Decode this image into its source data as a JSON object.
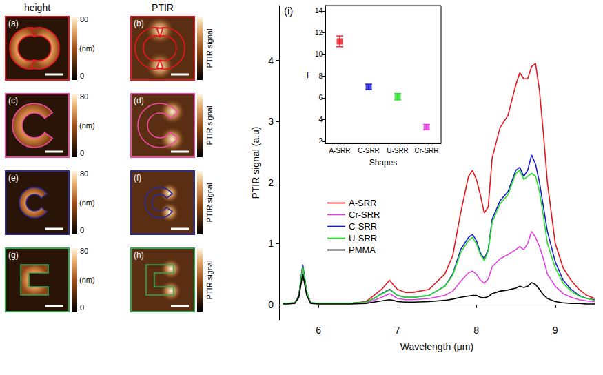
{
  "image_panels": {
    "column_titles": [
      "height",
      "PTIR"
    ],
    "height_colorbar": {
      "range": [
        0,
        80
      ],
      "ticks": [
        0,
        80
      ],
      "unit": "(nm)"
    },
    "ptir_colorbar": {
      "label": "PTIR signal"
    },
    "rows": [
      {
        "labels": [
          "(a)",
          "(b)"
        ],
        "shape": "A-SRR",
        "color": "#e8141c"
      },
      {
        "labels": [
          "(c)",
          "(d)"
        ],
        "shape": "Cr-SRR",
        "color": "#ee4aa0"
      },
      {
        "labels": [
          "(e)",
          "(f)"
        ],
        "shape": "C-SRR",
        "color": "#2a2a9a"
      },
      {
        "labels": [
          "(g)",
          "(h)"
        ],
        "shape": "U-SRR",
        "color": "#2aa84a"
      }
    ]
  },
  "chart_data": [
    {
      "type": "line",
      "panel_label": "(i)",
      "x_label": "Wavelength (μm)",
      "y_label": "PTIR signal (a.u)",
      "xlim": [
        5.5,
        9.5
      ],
      "xticks": [
        6,
        7,
        8,
        9
      ],
      "ylim": [
        -0.25,
        4.9
      ],
      "yticks": [
        0,
        1,
        2,
        3,
        4
      ],
      "grid": false,
      "legend": "center-left",
      "line_style": "solid",
      "x": [
        5.55,
        5.6,
        5.7,
        5.75,
        5.8,
        5.85,
        5.9,
        6.0,
        6.2,
        6.4,
        6.6,
        6.7,
        6.8,
        6.9,
        6.95,
        7.0,
        7.1,
        7.2,
        7.4,
        7.6,
        7.7,
        7.8,
        7.9,
        7.95,
        8.0,
        8.05,
        8.1,
        8.15,
        8.2,
        8.3,
        8.4,
        8.5,
        8.55,
        8.6,
        8.65,
        8.7,
        8.75,
        8.8,
        8.85,
        8.9,
        9.0,
        9.1,
        9.2,
        9.3,
        9.4,
        9.5
      ],
      "series": [
        {
          "name": "A-SRR",
          "color": "#e8141c",
          "values": [
            0.02,
            0.02,
            0.03,
            0.15,
            0.62,
            0.2,
            0.03,
            0.02,
            0.02,
            0.02,
            0.05,
            0.15,
            0.25,
            0.4,
            0.32,
            0.25,
            0.2,
            0.2,
            0.25,
            0.5,
            0.8,
            1.5,
            2.1,
            2.2,
            2.05,
            1.8,
            1.5,
            1.6,
            2.4,
            2.9,
            3.1,
            3.6,
            3.8,
            3.7,
            3.7,
            3.9,
            3.95,
            3.5,
            2.8,
            2.0,
            1.0,
            0.6,
            0.4,
            0.25,
            0.15,
            0.1
          ]
        },
        {
          "name": "Cr-SRR",
          "color": "#e040e0",
          "values": [
            0.02,
            0.02,
            0.03,
            0.13,
            0.6,
            0.18,
            0.03,
            0.02,
            0.02,
            0.02,
            0.03,
            0.07,
            0.12,
            0.18,
            0.14,
            0.1,
            0.08,
            0.08,
            0.1,
            0.15,
            0.22,
            0.38,
            0.52,
            0.55,
            0.5,
            0.4,
            0.35,
            0.42,
            0.62,
            0.75,
            0.82,
            0.9,
            0.95,
            0.9,
            1.0,
            1.2,
            1.1,
            0.95,
            0.75,
            0.5,
            0.3,
            0.18,
            0.12,
            0.08,
            0.06,
            0.05
          ]
        },
        {
          "name": "C-SRR",
          "color": "#1c1cd0",
          "values": [
            0.02,
            0.02,
            0.03,
            0.15,
            0.66,
            0.2,
            0.03,
            0.02,
            0.02,
            0.02,
            0.04,
            0.1,
            0.18,
            0.25,
            0.2,
            0.15,
            0.12,
            0.12,
            0.15,
            0.3,
            0.5,
            0.9,
            1.1,
            1.15,
            1.05,
            0.85,
            0.75,
            0.9,
            1.4,
            1.7,
            1.85,
            2.2,
            2.25,
            2.1,
            2.2,
            2.45,
            2.3,
            2.0,
            1.6,
            1.2,
            0.7,
            0.4,
            0.25,
            0.15,
            0.1,
            0.08
          ]
        },
        {
          "name": "U-SRR",
          "color": "#28e028",
          "values": [
            0.02,
            0.02,
            0.03,
            0.14,
            0.62,
            0.2,
            0.03,
            0.02,
            0.02,
            0.02,
            0.04,
            0.1,
            0.17,
            0.24,
            0.2,
            0.15,
            0.12,
            0.12,
            0.15,
            0.3,
            0.48,
            0.85,
            1.05,
            1.1,
            1.0,
            0.82,
            0.72,
            0.88,
            1.35,
            1.65,
            1.8,
            2.15,
            2.2,
            2.05,
            2.1,
            2.15,
            2.1,
            1.85,
            1.45,
            1.0,
            0.6,
            0.35,
            0.22,
            0.14,
            0.1,
            0.07
          ]
        },
        {
          "name": "PMMA",
          "color": "#000000",
          "values": [
            0.01,
            0.01,
            0.02,
            0.12,
            0.5,
            0.15,
            0.02,
            0.01,
            0.01,
            0.01,
            0.02,
            0.04,
            0.06,
            0.08,
            0.07,
            0.05,
            0.04,
            0.04,
            0.05,
            0.07,
            0.09,
            0.12,
            0.14,
            0.15,
            0.15,
            0.12,
            0.11,
            0.13,
            0.18,
            0.22,
            0.24,
            0.27,
            0.3,
            0.28,
            0.3,
            0.36,
            0.33,
            0.25,
            0.16,
            0.1,
            0.05,
            0.03,
            0.02,
            0.02,
            0.01,
            0.01
          ]
        }
      ]
    },
    {
      "type": "scatter",
      "x_label": "Shapes",
      "y_label": "Γ",
      "categories": [
        "A-SRR",
        "C-SRR",
        "U-SRR",
        "Cr-SRR"
      ],
      "values": [
        11.2,
        7.0,
        6.1,
        3.3
      ],
      "errors": [
        0.5,
        0.25,
        0.3,
        0.25
      ],
      "colors": [
        "#e8141c",
        "#1c1cd0",
        "#28e028",
        "#e040e0"
      ],
      "marker": "square",
      "ylim": [
        1.8,
        14.5
      ],
      "yticks": [
        2,
        4,
        6,
        8,
        10,
        12,
        14
      ],
      "grid": false
    }
  ]
}
